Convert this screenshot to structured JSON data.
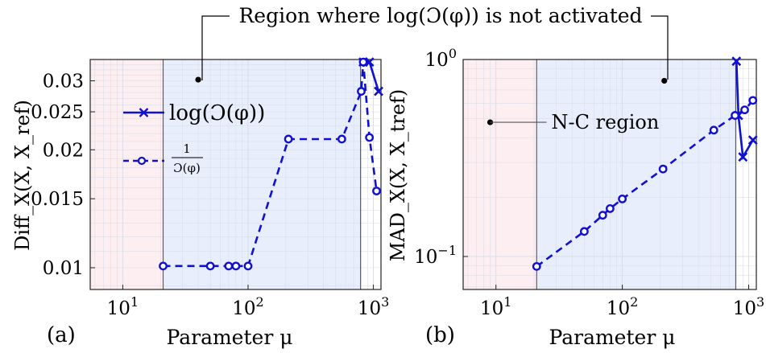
{
  "colors": {
    "series": "#1010d0",
    "nc_region": "#fdeef2",
    "active_region": "#e8eefc",
    "grid": "#d6dbe6",
    "divider": "#555555"
  },
  "annotation": {
    "top": "Region where log(Ɔ(φ)) is not activated"
  },
  "chart_data": [
    {
      "type": "line",
      "panel_label": "(a)",
      "xlabel": "Parameter μ",
      "ylabel": "Diff_X(X, X_ref)",
      "xscale": "log",
      "yscale": "log",
      "xlim": [
        5.5,
        1150
      ],
      "ylim": [
        0.0088,
        0.034
      ],
      "xticks": [
        {
          "v": 10,
          "base": "10",
          "exp": "1"
        },
        {
          "v": 100,
          "base": "10",
          "exp": "2"
        },
        {
          "v": 1000,
          "base": "10",
          "exp": "3"
        }
      ],
      "yticks": [
        {
          "v": 0.01,
          "label": "0.01"
        },
        {
          "v": 0.015,
          "label": "0.015"
        },
        {
          "v": 0.02,
          "label": "0.02"
        },
        {
          "v": 0.025,
          "label": "0.025"
        },
        {
          "v": 0.03,
          "label": "0.03"
        }
      ],
      "regions": [
        {
          "kind": "nc",
          "from": 5.5,
          "to": 21
        },
        {
          "kind": "active",
          "from": 21,
          "to": 790
        }
      ],
      "legend": {
        "placement": "upper-left",
        "entries": [
          {
            "label": "log(Ɔ(φ))",
            "series": 0
          },
          {
            "label": "1/Ɔ(φ)",
            "num": "1",
            "den": "Ɔ(φ)",
            "series": 1
          }
        ]
      },
      "callouts": [
        {
          "x": 40,
          "y": 0.0302
        }
      ],
      "series": [
        {
          "name": "log(Ɔ(φ))",
          "marker": "x",
          "dash": false,
          "x": [
            830,
            930,
            1100
          ],
          "y": [
            0.0335,
            0.0335,
            0.0282
          ]
        },
        {
          "name": "1/Ɔ(φ)",
          "marker": "o",
          "dash": true,
          "x": [
            21,
            50,
            70,
            80,
            100,
            210,
            560,
            800,
            830,
            930,
            1060
          ],
          "y": [
            0.0101,
            0.0101,
            0.0101,
            0.0101,
            0.0101,
            0.0213,
            0.0213,
            0.0282,
            0.0335,
            0.0215,
            0.0157
          ]
        }
      ]
    },
    {
      "type": "line",
      "panel_label": "(b)",
      "xlabel": "Parameter μ",
      "ylabel": "MAD_X(X, X_tref)",
      "xscale": "log",
      "yscale": "log",
      "xlim": [
        5.5,
        1150
      ],
      "ylim": [
        0.068,
        1.0
      ],
      "xticks": [
        {
          "v": 10,
          "base": "10",
          "exp": "1"
        },
        {
          "v": 100,
          "base": "10",
          "exp": "2"
        },
        {
          "v": 1000,
          "base": "10",
          "exp": "3"
        }
      ],
      "yticks": [
        {
          "v": 0.1,
          "base": "10",
          "exp": "−1"
        },
        {
          "v": 1.0,
          "base": "10",
          "exp": "0"
        }
      ],
      "regions": [
        {
          "kind": "nc",
          "from": 5.5,
          "to": 21
        },
        {
          "kind": "active",
          "from": 21,
          "to": 790
        }
      ],
      "callouts": [
        {
          "x": 215,
          "y": 0.78
        },
        {
          "x": 9,
          "y": 0.48,
          "text": "N-C region"
        }
      ],
      "series": [
        {
          "name": "log(Ɔ(φ))",
          "marker": "x",
          "dash": false,
          "x": [
            800,
            830,
            900,
            1080
          ],
          "y": [
            0.98,
            0.52,
            0.32,
            0.39
          ]
        },
        {
          "name": "1/Ɔ(φ)",
          "marker": "o",
          "dash": true,
          "x": [
            21,
            50,
            70,
            80,
            100,
            210,
            530,
            780,
            930,
            1080
          ],
          "y": [
            0.089,
            0.134,
            0.162,
            0.175,
            0.196,
            0.278,
            0.438,
            0.52,
            0.555,
            0.62
          ]
        }
      ]
    }
  ]
}
